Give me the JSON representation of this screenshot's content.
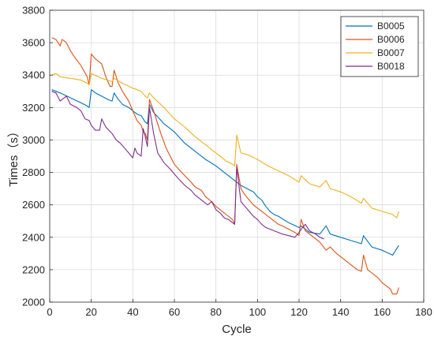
{
  "chart_data": {
    "type": "line",
    "xlabel": "Cycle",
    "ylabel": "Times（s）",
    "xlim": [
      0,
      180
    ],
    "ylim": [
      2000,
      3800
    ],
    "xticks": [
      0,
      20,
      40,
      60,
      80,
      100,
      120,
      140,
      160,
      180
    ],
    "yticks": [
      2000,
      2200,
      2400,
      2600,
      2800,
      3000,
      3200,
      3400,
      3600,
      3800
    ],
    "grid": true,
    "legend_position": "top-right",
    "series": [
      {
        "name": "B0005",
        "color": "#0072BD",
        "points": [
          [
            1,
            3310
          ],
          [
            5,
            3290
          ],
          [
            10,
            3260
          ],
          [
            15,
            3230
          ],
          [
            18,
            3210
          ],
          [
            19,
            3200
          ],
          [
            20,
            3310
          ],
          [
            22,
            3290
          ],
          [
            25,
            3270
          ],
          [
            28,
            3250
          ],
          [
            30,
            3240
          ],
          [
            31,
            3290
          ],
          [
            33,
            3250
          ],
          [
            35,
            3220
          ],
          [
            38,
            3200
          ],
          [
            40,
            3180
          ],
          [
            42,
            3160
          ],
          [
            44,
            3150
          ],
          [
            46,
            3110
          ],
          [
            47,
            3100
          ],
          [
            48,
            3220
          ],
          [
            50,
            3170
          ],
          [
            55,
            3100
          ],
          [
            60,
            3050
          ],
          [
            65,
            2980
          ],
          [
            70,
            2930
          ],
          [
            75,
            2880
          ],
          [
            80,
            2840
          ],
          [
            85,
            2790
          ],
          [
            88,
            2760
          ],
          [
            90,
            2740
          ],
          [
            92,
            2720
          ],
          [
            95,
            2700
          ],
          [
            98,
            2680
          ],
          [
            100,
            2650
          ],
          [
            102,
            2630
          ],
          [
            104,
            2590
          ],
          [
            106,
            2560
          ],
          [
            108,
            2540
          ],
          [
            110,
            2530
          ],
          [
            115,
            2490
          ],
          [
            120,
            2460
          ],
          [
            121,
            2470
          ],
          [
            125,
            2430
          ],
          [
            130,
            2420
          ],
          [
            133,
            2470
          ],
          [
            135,
            2420
          ],
          [
            140,
            2400
          ],
          [
            145,
            2380
          ],
          [
            150,
            2360
          ],
          [
            151,
            2410
          ],
          [
            155,
            2340
          ],
          [
            160,
            2320
          ],
          [
            165,
            2290
          ],
          [
            168,
            2350
          ]
        ]
      },
      {
        "name": "B0006",
        "color": "#D95319",
        "points": [
          [
            1,
            3630
          ],
          [
            3,
            3620
          ],
          [
            5,
            3580
          ],
          [
            6,
            3620
          ],
          [
            8,
            3600
          ],
          [
            10,
            3550
          ],
          [
            12,
            3510
          ],
          [
            15,
            3460
          ],
          [
            18,
            3390
          ],
          [
            19,
            3340
          ],
          [
            20,
            3530
          ],
          [
            22,
            3500
          ],
          [
            25,
            3470
          ],
          [
            27,
            3390
          ],
          [
            29,
            3330
          ],
          [
            30,
            3330
          ],
          [
            31,
            3430
          ],
          [
            33,
            3350
          ],
          [
            35,
            3300
          ],
          [
            38,
            3240
          ],
          [
            40,
            3180
          ],
          [
            42,
            3120
          ],
          [
            44,
            3090
          ],
          [
            45,
            3050
          ],
          [
            46,
            3040
          ],
          [
            47,
            3000
          ],
          [
            48,
            3250
          ],
          [
            50,
            3180
          ],
          [
            52,
            3100
          ],
          [
            54,
            3020
          ],
          [
            56,
            2950
          ],
          [
            58,
            2900
          ],
          [
            60,
            2850
          ],
          [
            62,
            2820
          ],
          [
            65,
            2780
          ],
          [
            68,
            2740
          ],
          [
            70,
            2710
          ],
          [
            73,
            2690
          ],
          [
            75,
            2650
          ],
          [
            78,
            2620
          ],
          [
            80,
            2590
          ],
          [
            82,
            2570
          ],
          [
            85,
            2540
          ],
          [
            88,
            2510
          ],
          [
            89,
            2480
          ],
          [
            90,
            2850
          ],
          [
            92,
            2700
          ],
          [
            94,
            2660
          ],
          [
            96,
            2630
          ],
          [
            98,
            2600
          ],
          [
            100,
            2580
          ],
          [
            102,
            2560
          ],
          [
            104,
            2540
          ],
          [
            106,
            2520
          ],
          [
            108,
            2500
          ],
          [
            110,
            2480
          ],
          [
            112,
            2470
          ],
          [
            115,
            2450
          ],
          [
            118,
            2430
          ],
          [
            120,
            2410
          ],
          [
            121,
            2510
          ],
          [
            123,
            2440
          ],
          [
            125,
            2420
          ],
          [
            128,
            2390
          ],
          [
            130,
            2370
          ],
          [
            133,
            2320
          ],
          [
            135,
            2340
          ],
          [
            138,
            2300
          ],
          [
            140,
            2280
          ],
          [
            143,
            2250
          ],
          [
            145,
            2230
          ],
          [
            148,
            2200
          ],
          [
            150,
            2190
          ],
          [
            151,
            2290
          ],
          [
            153,
            2200
          ],
          [
            155,
            2180
          ],
          [
            158,
            2150
          ],
          [
            160,
            2120
          ],
          [
            162,
            2100
          ],
          [
            164,
            2080
          ],
          [
            165,
            2050
          ],
          [
            167,
            2050
          ],
          [
            168,
            2090
          ]
        ]
      },
      {
        "name": "B0007",
        "color": "#EDB120",
        "points": [
          [
            1,
            3400
          ],
          [
            3,
            3410
          ],
          [
            5,
            3390
          ],
          [
            10,
            3380
          ],
          [
            15,
            3370
          ],
          [
            18,
            3350
          ],
          [
            19,
            3340
          ],
          [
            20,
            3410
          ],
          [
            25,
            3380
          ],
          [
            30,
            3360
          ],
          [
            31,
            3380
          ],
          [
            35,
            3350
          ],
          [
            40,
            3320
          ],
          [
            44,
            3300
          ],
          [
            46,
            3270
          ],
          [
            47,
            3260
          ],
          [
            48,
            3290
          ],
          [
            50,
            3260
          ],
          [
            55,
            3200
          ],
          [
            60,
            3130
          ],
          [
            65,
            3080
          ],
          [
            70,
            3020
          ],
          [
            75,
            2970
          ],
          [
            80,
            2920
          ],
          [
            85,
            2870
          ],
          [
            88,
            2850
          ],
          [
            89,
            2840
          ],
          [
            90,
            3030
          ],
          [
            92,
            2920
          ],
          [
            95,
            2910
          ],
          [
            100,
            2880
          ],
          [
            105,
            2840
          ],
          [
            110,
            2810
          ],
          [
            115,
            2780
          ],
          [
            120,
            2740
          ],
          [
            121,
            2780
          ],
          [
            125,
            2730
          ],
          [
            130,
            2710
          ],
          [
            133,
            2750
          ],
          [
            135,
            2700
          ],
          [
            140,
            2680
          ],
          [
            145,
            2650
          ],
          [
            150,
            2610
          ],
          [
            151,
            2640
          ],
          [
            155,
            2580
          ],
          [
            160,
            2560
          ],
          [
            165,
            2540
          ],
          [
            167,
            2520
          ],
          [
            168,
            2560
          ]
        ]
      },
      {
        "name": "B0018",
        "color": "#7E2F8E",
        "points": [
          [
            1,
            3300
          ],
          [
            3,
            3290
          ],
          [
            5,
            3240
          ],
          [
            8,
            3270
          ],
          [
            10,
            3220
          ],
          [
            13,
            3200
          ],
          [
            15,
            3180
          ],
          [
            17,
            3130
          ],
          [
            19,
            3120
          ],
          [
            20,
            3090
          ],
          [
            22,
            3060
          ],
          [
            24,
            3060
          ],
          [
            25,
            3130
          ],
          [
            27,
            3080
          ],
          [
            30,
            3040
          ],
          [
            32,
            3000
          ],
          [
            34,
            2980
          ],
          [
            36,
            2950
          ],
          [
            38,
            2920
          ],
          [
            40,
            2890
          ],
          [
            41,
            2950
          ],
          [
            42,
            2920
          ],
          [
            44,
            2900
          ],
          [
            45,
            3070
          ],
          [
            46,
            3020
          ],
          [
            47,
            2960
          ],
          [
            48,
            3200
          ],
          [
            50,
            3040
          ],
          [
            52,
            2920
          ],
          [
            55,
            2860
          ],
          [
            58,
            2820
          ],
          [
            60,
            2790
          ],
          [
            62,
            2760
          ],
          [
            65,
            2720
          ],
          [
            68,
            2690
          ],
          [
            70,
            2660
          ],
          [
            72,
            2640
          ],
          [
            74,
            2620
          ],
          [
            76,
            2600
          ],
          [
            78,
            2620
          ],
          [
            80,
            2570
          ],
          [
            82,
            2550
          ],
          [
            84,
            2520
          ],
          [
            86,
            2510
          ],
          [
            88,
            2490
          ],
          [
            89,
            2480
          ],
          [
            90,
            2830
          ],
          [
            92,
            2620
          ],
          [
            94,
            2590
          ],
          [
            96,
            2560
          ],
          [
            98,
            2530
          ],
          [
            100,
            2510
          ],
          [
            102,
            2480
          ],
          [
            104,
            2460
          ],
          [
            106,
            2450
          ],
          [
            108,
            2440
          ],
          [
            110,
            2430
          ],
          [
            112,
            2420
          ],
          [
            115,
            2410
          ],
          [
            118,
            2400
          ],
          [
            120,
            2430
          ],
          [
            121,
            2450
          ],
          [
            123,
            2480
          ],
          [
            125,
            2440
          ],
          [
            128,
            2420
          ],
          [
            130,
            2400
          ],
          [
            132,
            2390
          ]
        ]
      }
    ]
  }
}
